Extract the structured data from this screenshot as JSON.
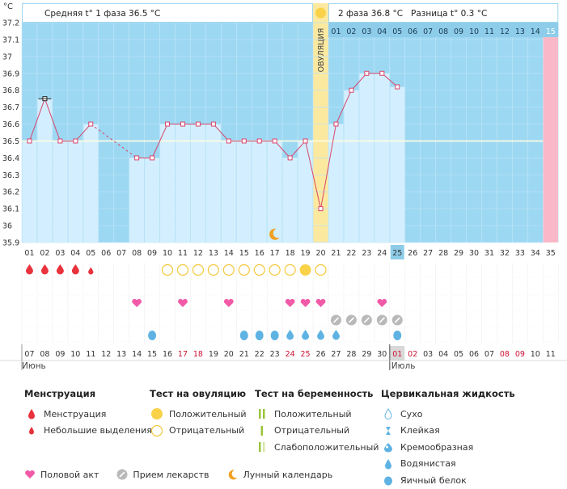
{
  "header": {
    "unit": "°C",
    "phase1": "Средняя t° 1 фаза 36.5 °C",
    "phase2": "2 фаза 36.8 °C",
    "difference": "Разница t° 0.3 °C",
    "ovulation_label": "ОВУЛЯЦИЯ"
  },
  "colors": {
    "phase1_bg": "#9dd8f3",
    "phase2_bg": "#9dd8f3",
    "bar": "#d3efff",
    "ovulation": "#fbe9a0",
    "next_period": "#f9b8c8",
    "line": "#d8456b",
    "coverline": "#fffde0",
    "weekend_date": "#cc1133"
  },
  "chart_data": {
    "type": "line",
    "title": "",
    "ylim": [
      35.9,
      37.2
    ],
    "y_ticks": [
      "35.9",
      "36",
      "36.1",
      "36.2",
      "36.3",
      "36.4",
      "36.5",
      "36.6",
      "36.7",
      "36.8",
      "36.9",
      "37",
      "37.1",
      "37.2"
    ],
    "coverline": 36.5,
    "cycle_days": [
      "01",
      "02",
      "03",
      "04",
      "05",
      "06",
      "07",
      "08",
      "09",
      "10",
      "11",
      "12",
      "13",
      "14",
      "15",
      "16",
      "17",
      "18",
      "19",
      "20",
      "21",
      "22",
      "23",
      "24",
      "25",
      "26",
      "27",
      "28",
      "29",
      "30",
      "31",
      "32",
      "33",
      "34",
      "35"
    ],
    "temperatures": [
      36.5,
      36.75,
      36.5,
      36.5,
      36.6,
      null,
      null,
      36.4,
      36.4,
      36.6,
      36.6,
      36.6,
      36.6,
      36.5,
      36.5,
      36.5,
      36.5,
      36.4,
      36.5,
      36.1,
      36.6,
      36.8,
      36.9,
      36.9,
      36.82,
      null,
      null,
      null,
      null,
      null,
      null,
      null,
      null,
      null,
      null
    ],
    "selected_day": "25",
    "ovulation_day": "20",
    "phase2_day_labels": [
      "01",
      "02",
      "03",
      "04",
      "05",
      "06",
      "07",
      "08",
      "09",
      "10",
      "11",
      "12",
      "13",
      "14",
      "15"
    ],
    "calendar_dates": [
      "07",
      "08",
      "09",
      "10",
      "11",
      "12",
      "13",
      "14",
      "15",
      "16",
      "17",
      "18",
      "19",
      "20",
      "21",
      "22",
      "23",
      "24",
      "25",
      "26",
      "27",
      "28",
      "29",
      "30",
      "01",
      "02",
      "03",
      "04",
      "05",
      "06",
      "07",
      "08",
      "09",
      "10",
      "11"
    ],
    "weekend_dates": [
      11,
      12,
      18,
      19,
      25,
      26,
      32,
      33
    ],
    "month_start": {
      "label": "Июнь",
      "index": 0
    },
    "month_next": {
      "label": "Июль",
      "index": 24
    },
    "menstruation": [
      1,
      2,
      3,
      4
    ],
    "light_spotting": [
      5
    ],
    "ovulation_test_negative": [
      10,
      11,
      12,
      13,
      14,
      15,
      16,
      17,
      18,
      20
    ],
    "ovulation_test_positive": [
      19
    ],
    "intercourse": [
      8,
      11,
      14,
      18,
      19,
      20,
      24
    ],
    "medication": [
      21,
      22,
      23,
      24,
      25
    ],
    "mucus": [
      {
        "day": 9,
        "type": "eggwhite"
      },
      {
        "day": 15,
        "type": "eggwhite"
      },
      {
        "day": 16,
        "type": "eggwhite"
      },
      {
        "day": 17,
        "type": "eggwhite"
      },
      {
        "day": 18,
        "type": "watery"
      },
      {
        "day": 19,
        "type": "watery"
      },
      {
        "day": 20,
        "type": "watery"
      },
      {
        "day": 21,
        "type": "watery"
      },
      {
        "day": 25,
        "type": "eggwhite"
      }
    ],
    "moon_day": 17
  },
  "legend": {
    "menstruation": {
      "title": "Менструация",
      "items": [
        "Менструация",
        "Небольшие выделения"
      ]
    },
    "ovulation_test": {
      "title": "Тест на овуляцию",
      "items": [
        "Положительный",
        "Отрицательный"
      ]
    },
    "pregnancy_test": {
      "title": "Тест на беременность",
      "items": [
        "Положительный",
        "Отрицательный",
        "Слабоположительный"
      ]
    },
    "mucus": {
      "title": "Цервикальная жидкость",
      "items": [
        "Сухо",
        "Клейкая",
        "Кремообразная",
        "Водянистая",
        "Яичный белок"
      ]
    },
    "bottom": [
      "Половой акт",
      "Прием лекарств",
      "Лунный календарь"
    ]
  }
}
